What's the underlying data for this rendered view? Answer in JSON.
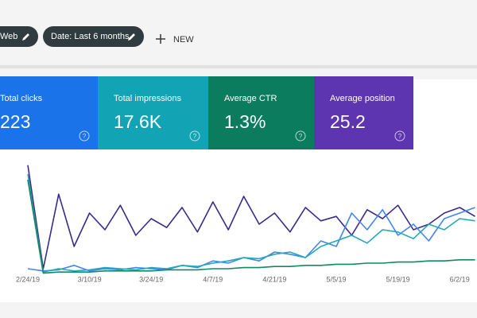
{
  "toolbar": {
    "chips": [
      "Web",
      "Date: Last 6 months"
    ],
    "new_button": "NEW"
  },
  "cards": [
    {
      "label": "Total clicks",
      "value": "223",
      "help": "?",
      "color": "#1a73e8"
    },
    {
      "label": "Total impressions",
      "value": "17.6K",
      "help": "?",
      "color": "#12a4b4"
    },
    {
      "label": "Average CTR",
      "value": "1.3%",
      "help": "?",
      "color": "#0b7d5e"
    },
    {
      "label": "Average position",
      "value": "25.2",
      "help": "?",
      "color": "#5e35b1"
    }
  ],
  "chart_data": {
    "type": "line",
    "categories": [
      "2/24/19",
      null,
      null,
      null,
      "3/10/19",
      null,
      null,
      null,
      "3/24/19",
      null,
      null,
      null,
      "4/7/19",
      null,
      null,
      null,
      "4/21/19",
      null,
      null,
      null,
      "5/5/19",
      null,
      null,
      null,
      "5/19/19",
      null,
      null,
      null,
      "6/2/19",
      null
    ],
    "ylim": [
      0,
      100
    ],
    "series": [
      {
        "color": "#3b2a8c",
        "values": [
          98,
          5,
          72,
          25,
          55,
          40,
          62,
          35,
          50,
          42,
          60,
          38,
          65,
          40,
          70,
          45,
          55,
          38,
          60,
          48,
          52,
          35,
          58,
          50,
          62,
          40,
          45,
          55,
          60,
          52
        ]
      },
      {
        "color": "#4285f4",
        "values": [
          5,
          3,
          4,
          8,
          3,
          5,
          4,
          6,
          5,
          4,
          8,
          6,
          12,
          10,
          15,
          12,
          20,
          18,
          15,
          30,
          25,
          55,
          40,
          58,
          35,
          45,
          30,
          50,
          55,
          60
        ]
      },
      {
        "color": "#22a8b8",
        "values": [
          90,
          2,
          5,
          3,
          4,
          6,
          5,
          4,
          6,
          5,
          8,
          7,
          10,
          12,
          15,
          14,
          18,
          20,
          15,
          25,
          30,
          35,
          28,
          40,
          38,
          32,
          45,
          40,
          50,
          48
        ]
      },
      {
        "color": "#0f8a62",
        "values": [
          85,
          1,
          2,
          2,
          2,
          3,
          3,
          3,
          3,
          4,
          4,
          4,
          5,
          5,
          6,
          6,
          7,
          7,
          8,
          8,
          9,
          9,
          10,
          10,
          11,
          11,
          12,
          12,
          13,
          13
        ]
      }
    ]
  }
}
